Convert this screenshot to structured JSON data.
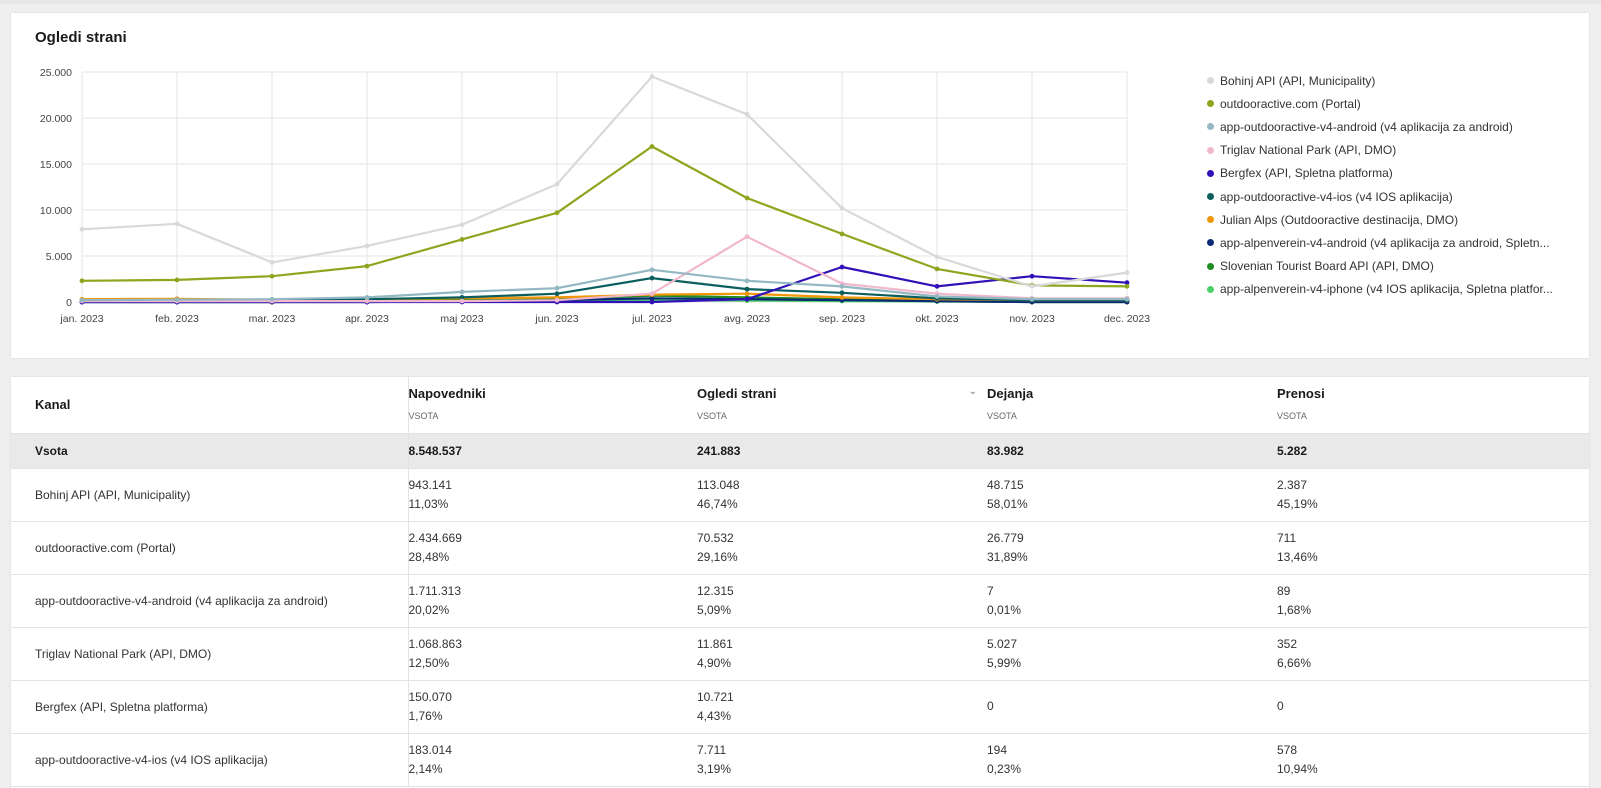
{
  "chart_data": {
    "type": "line",
    "title": "Ogledi strani",
    "xlabel": "",
    "ylabel": "",
    "categories": [
      "jan. 2023",
      "feb. 2023",
      "mar. 2023",
      "apr. 2023",
      "maj 2023",
      "jun. 2023",
      "jul. 2023",
      "avg. 2023",
      "sep. 2023",
      "okt. 2023",
      "nov. 2023",
      "dec. 2023"
    ],
    "ylim": [
      0,
      25000
    ],
    "yticks": [
      0,
      5000,
      10000,
      15000,
      20000,
      25000
    ],
    "ytick_labels": [
      "0",
      "5.000",
      "10.000",
      "15.000",
      "20.000",
      "25.000"
    ],
    "grid": true,
    "legend_position": "right",
    "series": [
      {
        "name": "Bohinj API (API, Municipality)",
        "color": "#d9d9d9",
        "values": [
          7900,
          8500,
          4300,
          6100,
          8400,
          12800,
          24500,
          20400,
          10200,
          4900,
          1700,
          3200
        ]
      },
      {
        "name": "outdooractive.com (Portal)",
        "color": "#8ea61f",
        "values": [
          2300,
          2400,
          2800,
          3900,
          6800,
          9700,
          16900,
          11300,
          7400,
          3600,
          1800,
          1700
        ]
      },
      {
        "name": "app-outdooractive-v4-android (v4 aplikacija za android)",
        "color": "#93b8c2",
        "values": [
          200,
          250,
          300,
          500,
          1100,
          1500,
          3500,
          2300,
          1700,
          600,
          300,
          300
        ]
      },
      {
        "name": "Triglav National Park (API, DMO)",
        "color": "#f0b8cc",
        "values": [
          100,
          100,
          100,
          100,
          100,
          200,
          900,
          7100,
          2000,
          900,
          400,
          400
        ]
      },
      {
        "name": "Bergfex (API, Spletna platforma)",
        "color": "#3210b8",
        "values": [
          0,
          0,
          0,
          0,
          0,
          0,
          0,
          300,
          3800,
          1700,
          2800,
          2100
        ]
      },
      {
        "name": "app-outdooractive-v4-ios (v4 IOS aplikacija)",
        "color": "#0b5e5e",
        "values": [
          100,
          150,
          200,
          300,
          500,
          900,
          2600,
          1400,
          1000,
          400,
          200,
          200
        ]
      },
      {
        "name": "Julian Alps (Outdooractive destinacija, DMO)",
        "color": "#f0960a",
        "values": [
          300,
          350,
          250,
          300,
          400,
          500,
          800,
          900,
          500,
          300,
          200,
          200
        ]
      },
      {
        "name": "app-alpenverein-v4-android (v4 aplikacija za android, Spletna platforma)",
        "color": "#0a2a78",
        "values": [
          0,
          0,
          0,
          0,
          100,
          200,
          400,
          300,
          200,
          100,
          0,
          0
        ]
      },
      {
        "name": "Slovenian Tourist Board API (API, DMO)",
        "color": "#1e8c1e",
        "values": [
          0,
          0,
          0,
          100,
          200,
          300,
          700,
          500,
          300,
          100,
          0,
          0
        ]
      },
      {
        "name": "app-alpenverein-v4-iphone (v4 IOS aplikacija, Spletna platforma)",
        "color": "#4cd06a",
        "values": [
          0,
          0,
          0,
          0,
          50,
          100,
          200,
          150,
          100,
          50,
          0,
          0
        ]
      }
    ]
  },
  "legend": {
    "items": [
      {
        "label": "Bohinj API (API, Municipality)"
      },
      {
        "label": "outdooractive.com (Portal)"
      },
      {
        "label": "app-outdooractive-v4-android (v4 aplikacija za android)"
      },
      {
        "label": "Triglav National Park (API, DMO)"
      },
      {
        "label": "Bergfex (API, Spletna platforma)"
      },
      {
        "label": "app-outdooractive-v4-ios (v4 IOS aplikacija)"
      },
      {
        "label": "Julian Alps (Outdooractive destinacija, DMO)"
      },
      {
        "label": "app-alpenverein-v4-android (v4 aplikacija za android, Spletn..."
      },
      {
        "label": "Slovenian Tourist Board API (API, DMO)"
      },
      {
        "label": "app-alpenverein-v4-iphone (v4 IOS aplikacija, Spletna platfor..."
      }
    ]
  },
  "table": {
    "columns": [
      {
        "label": "Kanal",
        "sub": ""
      },
      {
        "label": "Napovedniki",
        "sub": "VSOTA"
      },
      {
        "label": "Ogledi strani",
        "sub": "VSOTA"
      },
      {
        "label": "Dejanja",
        "sub": "VSOTA"
      },
      {
        "label": "Prenosi",
        "sub": "VSOTA"
      }
    ],
    "sum": {
      "label": "Vsota",
      "napovedniki": "8.548.537",
      "ogledi": "241.883",
      "dejanja": "83.982",
      "prenosi": "5.282"
    },
    "rows": [
      {
        "kanal": "Bohinj API (API, Municipality)",
        "napovedniki": "943.141",
        "napovedniki_pct": "11,03%",
        "ogledi": "113.048",
        "ogledi_pct": "46,74%",
        "dejanja": "48.715",
        "dejanja_pct": "58,01%",
        "prenosi": "2.387",
        "prenosi_pct": "45,19%"
      },
      {
        "kanal": "outdooractive.com (Portal)",
        "napovedniki": "2.434.669",
        "napovedniki_pct": "28,48%",
        "ogledi": "70.532",
        "ogledi_pct": "29,16%",
        "dejanja": "26.779",
        "dejanja_pct": "31,89%",
        "prenosi": "711",
        "prenosi_pct": "13,46%"
      },
      {
        "kanal": "app-outdooractive-v4-android (v4 aplikacija za android)",
        "napovedniki": "1.711.313",
        "napovedniki_pct": "20,02%",
        "ogledi": "12.315",
        "ogledi_pct": "5,09%",
        "dejanja": "7",
        "dejanja_pct": "0,01%",
        "prenosi": "89",
        "prenosi_pct": "1,68%"
      },
      {
        "kanal": "Triglav National Park (API, DMO)",
        "napovedniki": "1.068.863",
        "napovedniki_pct": "12,50%",
        "ogledi": "11.861",
        "ogledi_pct": "4,90%",
        "dejanja": "5.027",
        "dejanja_pct": "5,99%",
        "prenosi": "352",
        "prenosi_pct": "6,66%"
      },
      {
        "kanal": "Bergfex (API, Spletna platforma)",
        "napovedniki": "150.070",
        "napovedniki_pct": "1,76%",
        "ogledi": "10.721",
        "ogledi_pct": "4,43%",
        "dejanja": "0",
        "dejanja_pct": "",
        "prenosi": "0",
        "prenosi_pct": ""
      },
      {
        "kanal": "app-outdooractive-v4-ios (v4 IOS aplikacija)",
        "napovedniki": "183.014",
        "napovedniki_pct": "2,14%",
        "ogledi": "7.711",
        "ogledi_pct": "3,19%",
        "dejanja": "194",
        "dejanja_pct": "0,23%",
        "prenosi": "578",
        "prenosi_pct": "10,94%"
      }
    ]
  }
}
